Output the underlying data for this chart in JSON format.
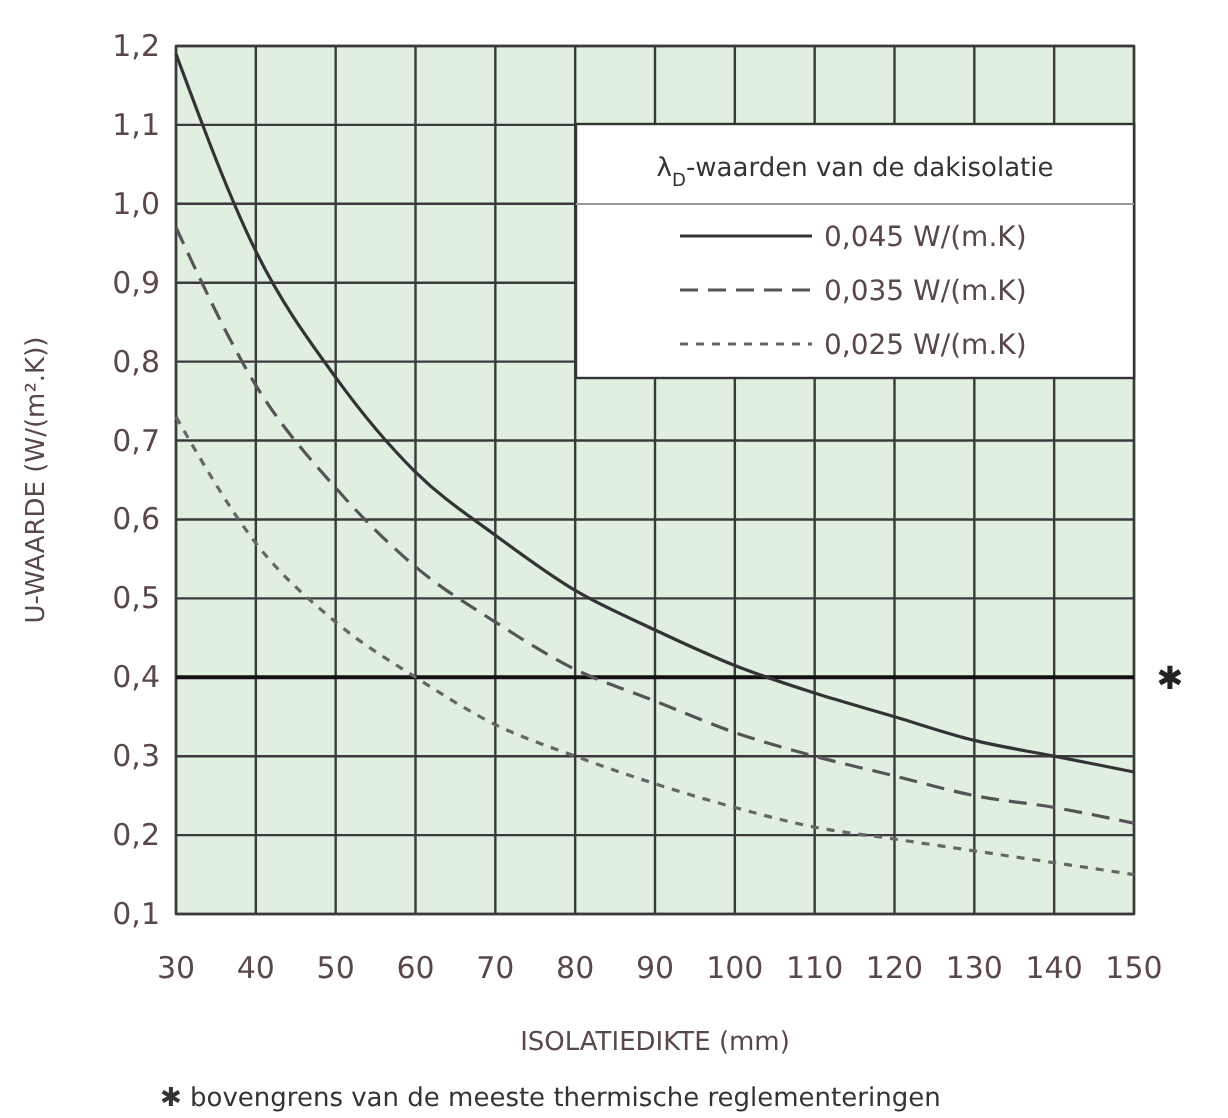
{
  "chart_data": {
    "type": "line",
    "xlabel": "ISOLATIEDIKTE (mm)",
    "ylabel": "U-WAARDE (W/(m².K))",
    "legend_title": "λ$_{D}$-waarden van de dakisolatie",
    "legend": "top right",
    "grid": true,
    "x": [
      30,
      40,
      50,
      60,
      70,
      80,
      90,
      100,
      110,
      120,
      130,
      140,
      150
    ],
    "xlim": [
      30,
      150
    ],
    "xticks": [
      30,
      40,
      50,
      60,
      70,
      80,
      90,
      100,
      110,
      120,
      130,
      140,
      150
    ],
    "ylim": [
      0.1,
      1.2
    ],
    "yticks": [
      {
        "value": 0.1,
        "label": "0,1"
      },
      {
        "value": 0.2,
        "label": "0,2"
      },
      {
        "value": 0.3,
        "label": "0,3"
      },
      {
        "value": 0.4,
        "label": "0,4"
      },
      {
        "value": 0.5,
        "label": "0,5"
      },
      {
        "value": 0.6,
        "label": "0,6"
      },
      {
        "value": 0.7,
        "label": "0,7"
      },
      {
        "value": 0.8,
        "label": "0,8"
      },
      {
        "value": 0.9,
        "label": "0,9"
      },
      {
        "value": 1.0,
        "label": "1,0"
      },
      {
        "value": 1.1,
        "label": "1,1"
      },
      {
        "value": 1.2,
        "label": "1,2"
      }
    ],
    "series": [
      {
        "name": "0,045 W/(m.K)",
        "color": "#333333",
        "line_style": "solid",
        "values": [
          1.19,
          0.94,
          0.78,
          0.66,
          0.58,
          0.51,
          0.46,
          0.415,
          0.38,
          0.35,
          0.32,
          0.3,
          0.28
        ]
      },
      {
        "name": "0,035 W/(m.K)",
        "color": "#555555",
        "line_style": "dashed",
        "values": [
          0.97,
          0.77,
          0.64,
          0.54,
          0.47,
          0.41,
          0.37,
          0.33,
          0.3,
          0.275,
          0.25,
          0.235,
          0.215
        ]
      },
      {
        "name": "0,025 W/(m.K)",
        "color": "#666666",
        "line_style": "dotted",
        "values": [
          0.73,
          0.57,
          0.47,
          0.4,
          0.34,
          0.3,
          0.265,
          0.235,
          0.21,
          0.195,
          0.18,
          0.165,
          0.15
        ]
      }
    ],
    "ref_lines": [
      {
        "axis": "y",
        "value": 0.4,
        "label": "✱",
        "color": "#111111"
      }
    ],
    "annotations": [
      "✱ bovengrens van de meeste thermische reglementeringen"
    ]
  }
}
